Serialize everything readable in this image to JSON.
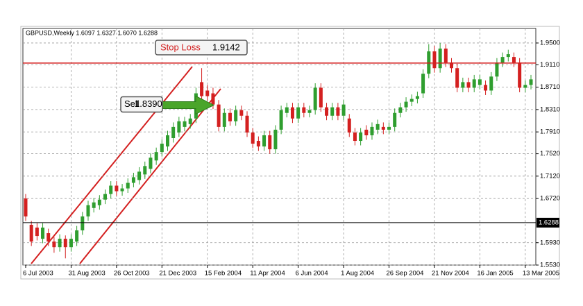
{
  "chart_data": {
    "type": "candlestick",
    "title": "GBPUSD,Weekly  1.6097 1.6327 1.6070 1.6288",
    "categories": [
      "6 Jul 2003",
      null,
      null,
      null,
      null,
      null,
      null,
      null,
      "31 Aug 2003",
      null,
      null,
      null,
      null,
      null,
      null,
      null,
      "26 Oct 2003",
      null,
      null,
      null,
      null,
      null,
      null,
      null,
      "21 Dec 2003",
      null,
      null,
      null,
      null,
      null,
      null,
      null,
      "15 Feb 2004",
      null,
      null,
      null,
      null,
      null,
      null,
      null,
      "11 Apr 2004",
      null,
      null,
      null,
      null,
      null,
      null,
      null,
      "6 Jun 2004",
      null,
      null,
      null,
      null,
      null,
      null,
      null,
      "1 Aug 2004",
      null,
      null,
      null,
      null,
      null,
      null,
      null,
      "26 Sep 2004",
      null,
      null,
      null,
      null,
      null,
      null,
      null,
      "21 Nov 2004",
      null,
      null,
      null,
      null,
      null,
      null,
      null,
      "16 Jan 2005",
      null,
      null,
      null,
      null,
      null,
      null,
      null,
      "13 Mar 2005",
      null
    ],
    "open": [
      1.672,
      1.625,
      1.62,
      1.6,
      1.61,
      1.595,
      1.585,
      1.6,
      1.585,
      1.595,
      1.615,
      1.64,
      1.655,
      1.66,
      1.67,
      1.68,
      1.695,
      1.685,
      1.69,
      1.7,
      1.705,
      1.715,
      1.725,
      1.74,
      1.755,
      1.765,
      1.78,
      1.79,
      1.8,
      1.805,
      1.815,
      1.88,
      1.865,
      1.86,
      1.84,
      1.8,
      1.825,
      1.81,
      1.83,
      1.82,
      1.79,
      1.775,
      1.765,
      1.785,
      1.76,
      1.795,
      1.825,
      1.835,
      1.815,
      1.835,
      1.825,
      1.83,
      1.87,
      1.835,
      1.82,
      1.835,
      1.82,
      1.815,
      1.79,
      1.775,
      1.795,
      1.785,
      1.795,
      1.8,
      1.795,
      1.8,
      1.825,
      1.835,
      1.845,
      1.85,
      1.86,
      1.895,
      1.935,
      1.905,
      1.94,
      1.915,
      1.905,
      1.87,
      1.88,
      1.87,
      1.875,
      1.875,
      1.865,
      1.89,
      1.915,
      1.925,
      1.925,
      1.915,
      1.87,
      1.875
    ],
    "high": [
      1.68,
      1.632,
      1.628,
      1.628,
      1.618,
      1.603,
      1.608,
      1.606,
      1.608,
      1.623,
      1.648,
      1.668,
      1.673,
      1.678,
      1.688,
      1.703,
      1.703,
      1.698,
      1.708,
      1.718,
      1.728,
      1.738,
      1.753,
      1.763,
      1.778,
      1.793,
      1.808,
      1.818,
      1.818,
      1.823,
      1.87,
      1.905,
      1.875,
      1.87,
      1.848,
      1.833,
      1.833,
      1.838,
      1.838,
      1.828,
      1.798,
      1.783,
      1.793,
      1.793,
      1.803,
      1.838,
      1.843,
      1.843,
      1.843,
      1.843,
      1.838,
      1.878,
      1.878,
      1.843,
      1.843,
      1.843,
      1.848,
      1.823,
      1.798,
      1.798,
      1.803,
      1.808,
      1.813,
      1.808,
      1.808,
      1.833,
      1.843,
      1.853,
      1.858,
      1.863,
      1.903,
      1.948,
      1.945,
      1.95,
      1.948,
      1.923,
      1.913,
      1.888,
      1.888,
      1.893,
      1.893,
      1.883,
      1.898,
      1.923,
      1.933,
      1.938,
      1.933,
      1.923,
      1.883,
      1.893
    ],
    "low": [
      1.632,
      1.587,
      1.597,
      1.592,
      1.587,
      1.575,
      1.577,
      1.565,
      1.577,
      1.587,
      1.607,
      1.632,
      1.647,
      1.652,
      1.662,
      1.672,
      1.677,
      1.677,
      1.682,
      1.692,
      1.697,
      1.707,
      1.717,
      1.732,
      1.747,
      1.757,
      1.772,
      1.782,
      1.792,
      1.797,
      1.807,
      1.847,
      1.847,
      1.832,
      1.792,
      1.792,
      1.802,
      1.802,
      1.812,
      1.782,
      1.762,
      1.757,
      1.757,
      1.752,
      1.752,
      1.787,
      1.817,
      1.807,
      1.807,
      1.817,
      1.817,
      1.822,
      1.827,
      1.812,
      1.812,
      1.812,
      1.812,
      1.782,
      1.767,
      1.767,
      1.777,
      1.777,
      1.787,
      1.787,
      1.787,
      1.792,
      1.817,
      1.827,
      1.837,
      1.842,
      1.852,
      1.887,
      1.897,
      1.897,
      1.907,
      1.897,
      1.862,
      1.862,
      1.862,
      1.862,
      1.867,
      1.857,
      1.857,
      1.882,
      1.907,
      1.917,
      1.907,
      1.862,
      1.862,
      1.867
    ],
    "close": [
      1.64,
      1.595,
      1.605,
      1.62,
      1.595,
      1.585,
      1.6,
      1.585,
      1.6,
      1.615,
      1.64,
      1.66,
      1.665,
      1.67,
      1.68,
      1.695,
      1.685,
      1.69,
      1.7,
      1.71,
      1.72,
      1.73,
      1.745,
      1.755,
      1.77,
      1.785,
      1.8,
      1.81,
      1.81,
      1.815,
      1.86,
      1.855,
      1.855,
      1.84,
      1.8,
      1.825,
      1.81,
      1.83,
      1.82,
      1.79,
      1.77,
      1.765,
      1.785,
      1.76,
      1.795,
      1.83,
      1.835,
      1.815,
      1.835,
      1.825,
      1.83,
      1.87,
      1.835,
      1.82,
      1.835,
      1.82,
      1.84,
      1.79,
      1.775,
      1.79,
      1.785,
      1.8,
      1.805,
      1.795,
      1.8,
      1.825,
      1.835,
      1.845,
      1.85,
      1.855,
      1.895,
      1.935,
      1.905,
      1.94,
      1.915,
      1.905,
      1.87,
      1.88,
      1.87,
      1.885,
      1.885,
      1.865,
      1.89,
      1.915,
      1.925,
      1.93,
      1.915,
      1.87,
      1.875,
      1.885
    ],
    "up_color": "#2f9e2f",
    "down_color": "#d42020",
    "ylim": [
      1.553,
      1.976
    ],
    "yticks": [
      {
        "value": 1.95,
        "label": "1.9500"
      },
      {
        "value": 1.911,
        "label": "1.9110"
      },
      {
        "value": 1.871,
        "label": "1.8710"
      },
      {
        "value": 1.831,
        "label": "1.8310"
      },
      {
        "value": 1.791,
        "label": "1.7910"
      },
      {
        "value": 1.752,
        "label": "1.7520"
      },
      {
        "value": 1.712,
        "label": "1.7120"
      },
      {
        "value": 1.672,
        "label": "1.6720"
      },
      {
        "value": 1.593,
        "label": "1.5930"
      },
      {
        "value": 1.553,
        "label": "1.5530"
      }
    ],
    "grid": true,
    "current_price": 1.6288,
    "stop_loss": {
      "label": "Stop Loss",
      "value": 1.9142
    },
    "sell": {
      "label": "Sell",
      "price": {
        "value": 1.839,
        "label": "1.8390"
      }
    }
  }
}
